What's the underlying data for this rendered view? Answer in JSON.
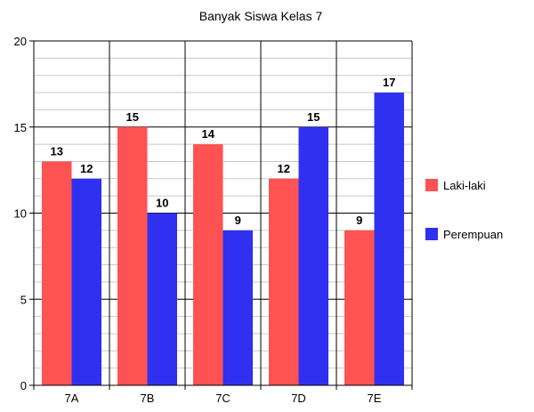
{
  "chart_data": {
    "type": "bar",
    "title": "Banyak Siswa Kelas 7",
    "xlabel": "",
    "ylabel": "",
    "categories": [
      "7A",
      "7B",
      "7C",
      "7D",
      "7E"
    ],
    "series": [
      {
        "name": "Laki-laki",
        "values": [
          13,
          15,
          14,
          12,
          9
        ],
        "color": "#ff5252"
      },
      {
        "name": "Perempuan",
        "values": [
          12,
          10,
          9,
          15,
          17
        ],
        "color": "#3030f0"
      }
    ],
    "ylim": [
      0,
      20
    ],
    "yticks": [
      0,
      5,
      10,
      15,
      20
    ],
    "minor_step": 1,
    "grid": true,
    "legend_position": "right",
    "data_labels": true
  }
}
